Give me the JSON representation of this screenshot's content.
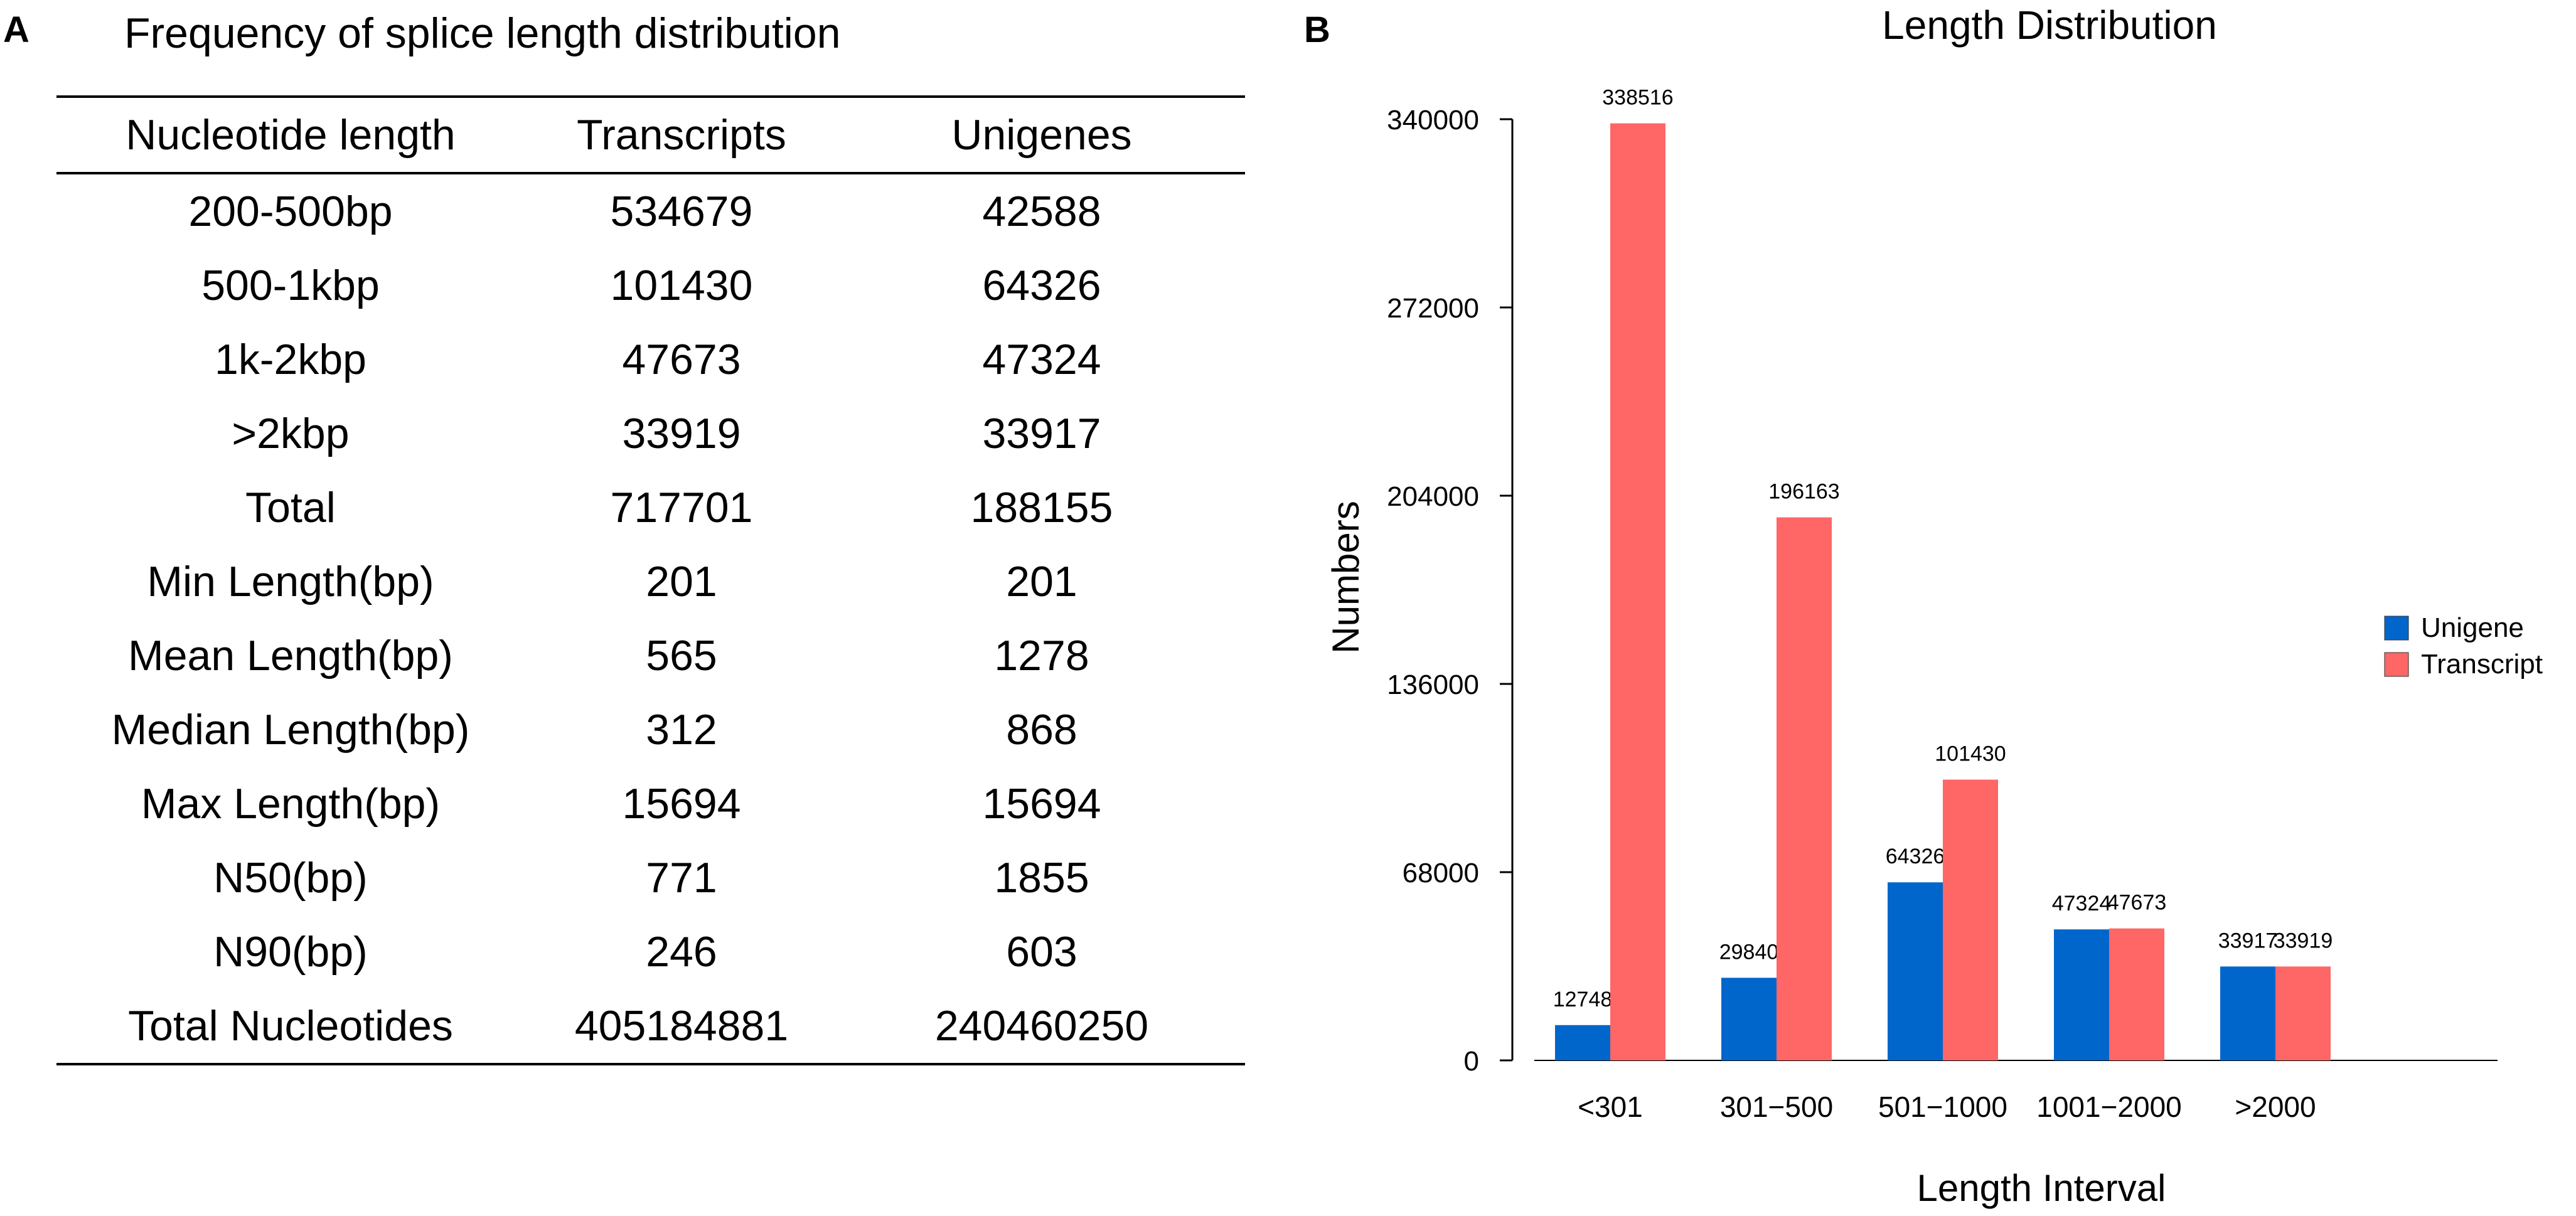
{
  "panelA": {
    "letter": "A",
    "title": "Frequency of splice length distribution",
    "headers": [
      "Nucleotide length",
      "Transcripts",
      "Unigenes"
    ],
    "rows": [
      [
        "200-500bp",
        "534679",
        "42588"
      ],
      [
        "500-1kbp",
        "101430",
        "64326"
      ],
      [
        "1k-2kbp",
        "47673",
        "47324"
      ],
      [
        ">2kbp",
        "33919",
        "33917"
      ],
      [
        "Total",
        "717701",
        "188155"
      ],
      [
        "Min Length(bp)",
        "201",
        "201"
      ],
      [
        "Mean Length(bp)",
        "565",
        "1278"
      ],
      [
        "Median Length(bp)",
        "312",
        "868"
      ],
      [
        "Max Length(bp)",
        "15694",
        "15694"
      ],
      [
        "N50(bp)",
        "771",
        "1855"
      ],
      [
        "N90(bp)",
        "246",
        "603"
      ],
      [
        "Total Nucleotides",
        "405184881",
        "240460250"
      ]
    ]
  },
  "panelB": {
    "letter": "B"
  },
  "chart_data": {
    "type": "bar",
    "title": "Length Distribution",
    "xlabel": "Length Interval",
    "ylabel": "Numbers",
    "categories": [
      "<301",
      "301−500",
      "501−1000",
      "1001−2000",
      ">2000"
    ],
    "series": [
      {
        "name": "Unigene",
        "color": "#0066CC",
        "values": [
          12748,
          29840,
          64326,
          47324,
          33917
        ]
      },
      {
        "name": "Transcript",
        "color": "#FF6666",
        "values": [
          338516,
          196163,
          101430,
          47673,
          33919
        ]
      }
    ],
    "yticks": [
      0,
      68000,
      136000,
      204000,
      272000,
      340000
    ],
    "ylim": [
      0,
      340000
    ],
    "legend_position": "right"
  }
}
